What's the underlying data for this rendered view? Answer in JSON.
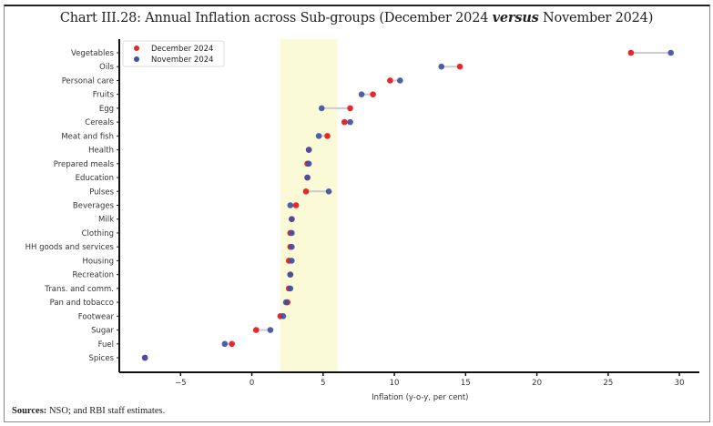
{
  "header": {
    "title_prefix": "Chart III.28: Annual Inflation across Sub-groups (December 2024 ",
    "title_italic": "versus",
    "title_suffix": " November 2024)"
  },
  "footer": {
    "sources_label": "Sources:",
    "sources_text": " NSO; and RBI staff estimates."
  },
  "colors": {
    "december": "#e8262b",
    "november": "#3f51a3",
    "connector": "#cccccc",
    "band": "#fafad7"
  },
  "chart_data": {
    "type": "dumbbell",
    "title": "Chart III.28: Annual Inflation across Sub-groups (December 2024 versus November 2024)",
    "xlabel": "Inflation (y-o-y, per cent)",
    "ylabel": "",
    "xlim": [
      -9.3,
      31.4
    ],
    "xticks": [
      -5,
      0,
      5,
      10,
      15,
      20,
      25,
      30
    ],
    "xtick_labels": [
      "−5",
      "0",
      "5",
      "10",
      "15",
      "20",
      "25",
      "30"
    ],
    "shaded_band": [
      2,
      6
    ],
    "legend": {
      "position": "top-left",
      "entries": [
        "December 2024",
        "November 2024"
      ]
    },
    "categories": [
      "Vegetables",
      "Oils",
      "Personal care",
      "Fruits",
      "Egg",
      "Cereals",
      "Meat and fish",
      "Health",
      "Prepared meals",
      "Education",
      "Pulses",
      "Beverages",
      "Milk",
      "Clothing",
      "HH goods and services",
      "Housing",
      "Recreation",
      "Trans. and comm.",
      "Pan and tobacco",
      "Footwear",
      "Sugar",
      "Fuel",
      "Spices"
    ],
    "series": [
      {
        "name": "December 2024",
        "values": [
          26.6,
          14.6,
          9.7,
          8.5,
          6.9,
          6.5,
          5.3,
          4.0,
          3.9,
          3.9,
          3.8,
          3.1,
          2.8,
          2.7,
          2.7,
          2.6,
          2.7,
          2.6,
          2.5,
          2.0,
          0.3,
          -1.4,
          -7.5
        ]
      },
      {
        "name": "November 2024",
        "values": [
          29.4,
          13.3,
          10.4,
          7.7,
          4.9,
          6.9,
          4.7,
          4.0,
          4.0,
          3.9,
          5.4,
          2.7,
          2.8,
          2.8,
          2.8,
          2.8,
          2.7,
          2.7,
          2.4,
          2.2,
          1.3,
          -1.9,
          -7.5
        ]
      }
    ],
    "grid": false
  },
  "sources_footnote": "Sources: NSO; and RBI staff estimates."
}
